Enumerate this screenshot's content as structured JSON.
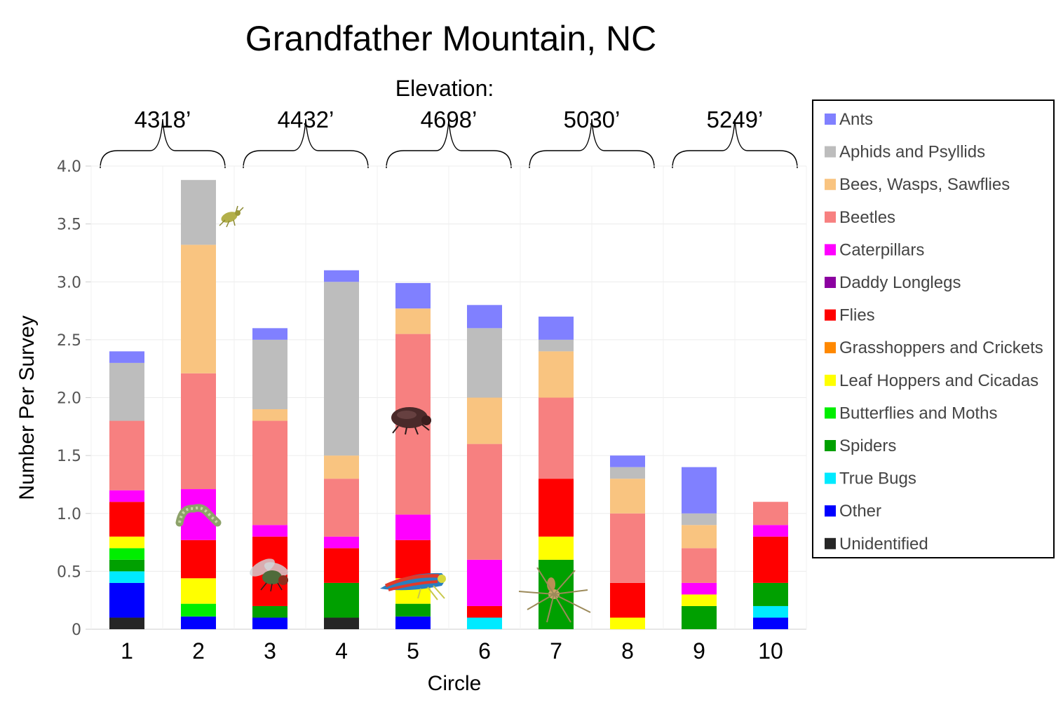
{
  "chart_data": {
    "type": "bar",
    "stacked": true,
    "title": "Grandfather Mountain, NC",
    "xlabel": "Circle",
    "ylabel": "Number Per Survey",
    "ylim": [
      0,
      4
    ],
    "yticks": [
      "0",
      "0.5",
      "1.0",
      "1.5",
      "2.0",
      "2.5",
      "3.0",
      "3.5",
      "4.0"
    ],
    "categories": [
      "1",
      "2",
      "3",
      "4",
      "5",
      "6",
      "7",
      "8",
      "9",
      "10"
    ],
    "grid": true,
    "legend_position": "right",
    "elevation": {
      "label": "Elevation:",
      "groups": [
        {
          "label": "4318’",
          "circles": [
            "1",
            "2"
          ]
        },
        {
          "label": "4432’",
          "circles": [
            "3",
            "4"
          ]
        },
        {
          "label": "4698’",
          "circles": [
            "5",
            "6"
          ]
        },
        {
          "label": "5030’",
          "circles": [
            "7",
            "8"
          ]
        },
        {
          "label": "5249’",
          "circles": [
            "9",
            "10"
          ]
        }
      ]
    },
    "series": [
      {
        "name": "Unidentified",
        "color": "#262626",
        "values": [
          0.1,
          0,
          0,
          0.1,
          0,
          0,
          0,
          0,
          0,
          0
        ]
      },
      {
        "name": "Other",
        "color": "#0000ff",
        "values": [
          0.3,
          0.11,
          0.1,
          0,
          0.11,
          0,
          0,
          0,
          0,
          0.1
        ]
      },
      {
        "name": "True Bugs",
        "color": "#00eaff",
        "values": [
          0.1,
          0,
          0,
          0,
          0,
          0.1,
          0,
          0,
          0,
          0.1
        ]
      },
      {
        "name": "Spiders",
        "color": "#00a000",
        "values": [
          0.1,
          0,
          0.1,
          0.3,
          0.11,
          0,
          0.6,
          0,
          0.2,
          0.2
        ]
      },
      {
        "name": "Butterflies and Moths",
        "color": "#00ee00",
        "values": [
          0.1,
          0.11,
          0,
          0,
          0,
          0,
          0,
          0,
          0,
          0
        ]
      },
      {
        "name": "Leaf Hoppers and Cicadas",
        "color": "#ffff00",
        "values": [
          0.1,
          0.22,
          0,
          0,
          0.22,
          0,
          0.2,
          0.1,
          0.1,
          0
        ]
      },
      {
        "name": "Grasshoppers and Crickets",
        "color": "#ff8800",
        "values": [
          0,
          0,
          0,
          0,
          0,
          0,
          0,
          0,
          0,
          0
        ]
      },
      {
        "name": "Flies",
        "color": "#ff0000",
        "values": [
          0.3,
          0.33,
          0.6,
          0.3,
          0.33,
          0.1,
          0.5,
          0.3,
          0,
          0.4
        ]
      },
      {
        "name": "Daddy Longlegs",
        "color": "#8b00a0",
        "values": [
          0,
          0,
          0,
          0,
          0,
          0,
          0,
          0,
          0,
          0
        ]
      },
      {
        "name": "Caterpillars",
        "color": "#ff00ff",
        "values": [
          0.1,
          0.44,
          0.1,
          0.1,
          0.22,
          0.4,
          0,
          0,
          0.1,
          0.1
        ]
      },
      {
        "name": "Beetles",
        "color": "#f78080",
        "values": [
          0.6,
          1.0,
          0.9,
          0.5,
          1.56,
          1.0,
          0.7,
          0.6,
          0.3,
          0.2
        ]
      },
      {
        "name": "Bees, Wasps, Sawflies",
        "color": "#f9c480",
        "values": [
          0,
          1.11,
          0.1,
          0.2,
          0.22,
          0.4,
          0.4,
          0.3,
          0.2,
          0
        ]
      },
      {
        "name": "Aphids and Psyllids",
        "color": "#bdbdbd",
        "values": [
          0.5,
          0.56,
          0.6,
          1.5,
          0,
          0.6,
          0.1,
          0.1,
          0.1,
          0
        ]
      },
      {
        "name": "Ants",
        "color": "#8080ff",
        "values": [
          0.1,
          0,
          0.1,
          0.1,
          0.22,
          0.2,
          0.2,
          0.1,
          0.4,
          0
        ]
      }
    ],
    "legend_order": [
      "Ants",
      "Aphids and Psyllids",
      "Bees, Wasps, Sawflies",
      "Beetles",
      "Caterpillars",
      "Daddy Longlegs",
      "Flies",
      "Grasshoppers and Crickets",
      "Leaf Hoppers and Cicadas",
      "Butterflies and Moths",
      "Spiders",
      "True Bugs",
      "Other",
      "Unidentified"
    ]
  },
  "decorations": {
    "insect_images": [
      "psyllid-image",
      "caterpillar-image",
      "fly-image",
      "leafhopper-image",
      "beetle-image",
      "spider-image"
    ]
  }
}
